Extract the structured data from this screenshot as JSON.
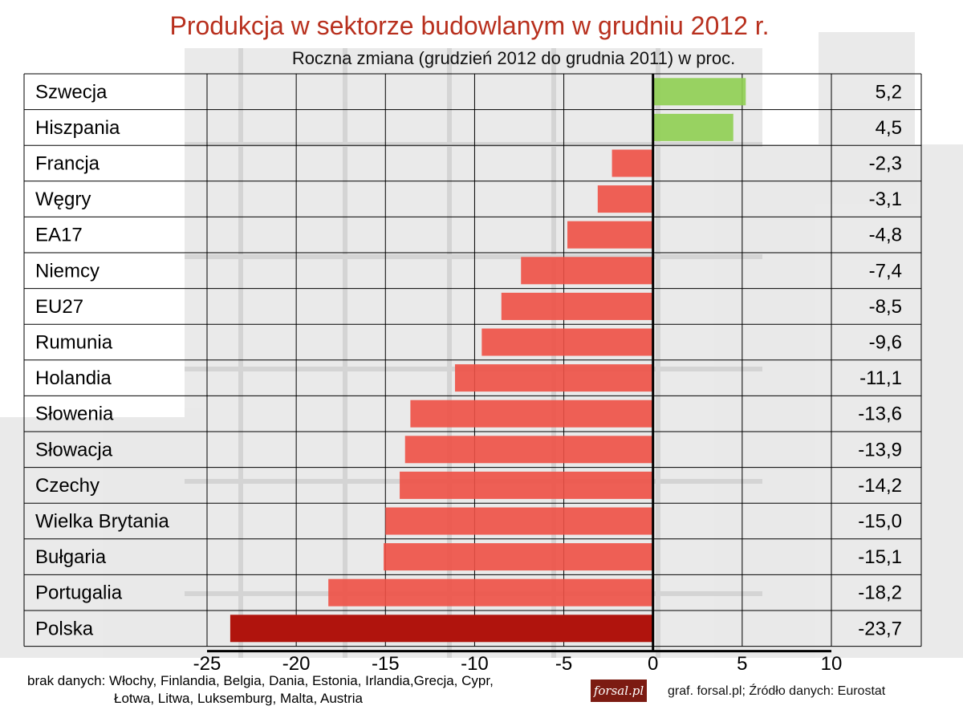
{
  "header": {
    "title": "Produkcja w sektorze budowlanym w grudniu 2012 r.",
    "subtitle": "Roczna zmiana (grudzień 2012 do grudnia 2011) w proc."
  },
  "footer": {
    "note_line1": "brak danych: Włochy, Finlandia, Belgia, Dania, Estonia, Irlandia,Grecja, Cypr,",
    "note_line2": "Łotwa, Litwa, Luksemburg, Malta, Austria",
    "logo": "forsal.pl",
    "source": "graf. forsal.pl; Źródło danych: Eurostat"
  },
  "chart_data": {
    "type": "bar",
    "orientation": "horizontal",
    "title": "Produkcja w sektorze budowlanym w grudniu 2012 r.",
    "subtitle": "Roczna zmiana (grudzień 2012 do grudnia 2011) w proc.",
    "categories": [
      "Szwecja",
      "Hiszpania",
      "Francja",
      "Węgry",
      "EA17",
      "Niemcy",
      "EU27",
      "Rumunia",
      "Holandia",
      "Słowenia",
      "Słowacja",
      "Czechy",
      "Wielka Brytania",
      "Bułgaria",
      "Portugalia",
      "Polska"
    ],
    "values": [
      5.2,
      4.5,
      -2.3,
      -3.1,
      -4.8,
      -7.4,
      -8.5,
      -9.6,
      -11.1,
      -13.6,
      -13.9,
      -14.2,
      -15.0,
      -15.1,
      -18.2,
      -23.7
    ],
    "value_labels": [
      "5,2",
      "4,5",
      "-2,3",
      "-3,1",
      "-4,8",
      "-7,4",
      "-8,5",
      "-9,6",
      "-11,1",
      "-13,6",
      "-13,9",
      "-14,2",
      "-15,0",
      "-15,1",
      "-18,2",
      "-23,7"
    ],
    "xlim": [
      -25,
      10
    ],
    "xticks": [
      -25,
      -20,
      -15,
      -10,
      -5,
      0,
      5,
      10
    ],
    "xtick_labels": [
      "-25",
      "-20",
      "-15",
      "-10",
      "-5",
      "0",
      "5",
      "10"
    ],
    "grid": true,
    "legend": "none",
    "colors": {
      "positive": "#8fcf52",
      "negative": "#ee5045",
      "highlight": "#b0140d",
      "title": "#b8301e"
    },
    "highlight_category": "Polska"
  }
}
